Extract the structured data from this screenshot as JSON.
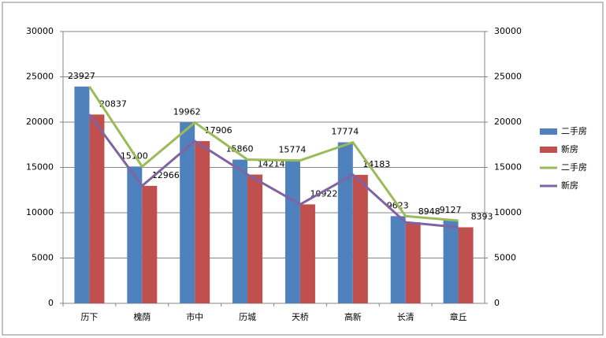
{
  "chart_data": {
    "type": "bar",
    "categories": [
      "历下",
      "槐荫",
      "市中",
      "历城",
      "天桥",
      "高新",
      "长清",
      "章丘"
    ],
    "series": [
      {
        "name": "二手房",
        "type": "bar",
        "color": "#4f81bd",
        "values": [
          23927,
          15100,
          19962,
          15860,
          15774,
          17774,
          9623,
          9127
        ]
      },
      {
        "name": "新房",
        "type": "bar",
        "color": "#c0504d",
        "values": [
          20837,
          12966,
          17906,
          14214,
          10922,
          14183,
          8948,
          8393
        ]
      },
      {
        "name": "二手房",
        "type": "line",
        "axis": "y2",
        "color": "#9bbb59",
        "values": [
          23927,
          15100,
          19962,
          15860,
          15774,
          17774,
          9623,
          9127
        ]
      },
      {
        "name": "新房",
        "type": "line",
        "axis": "y2",
        "color": "#8064a2",
        "values": [
          20837,
          12966,
          17906,
          14214,
          10922,
          14183,
          8948,
          8393
        ]
      }
    ],
    "ylim": [
      0,
      30000
    ],
    "yticks": [
      0,
      5000,
      10000,
      15000,
      20000,
      25000,
      30000
    ],
    "y2lim": [
      0,
      30000
    ],
    "y2ticks": [
      0,
      5000,
      10000,
      15000,
      20000,
      25000,
      30000
    ],
    "grid": true,
    "legend": "right"
  }
}
